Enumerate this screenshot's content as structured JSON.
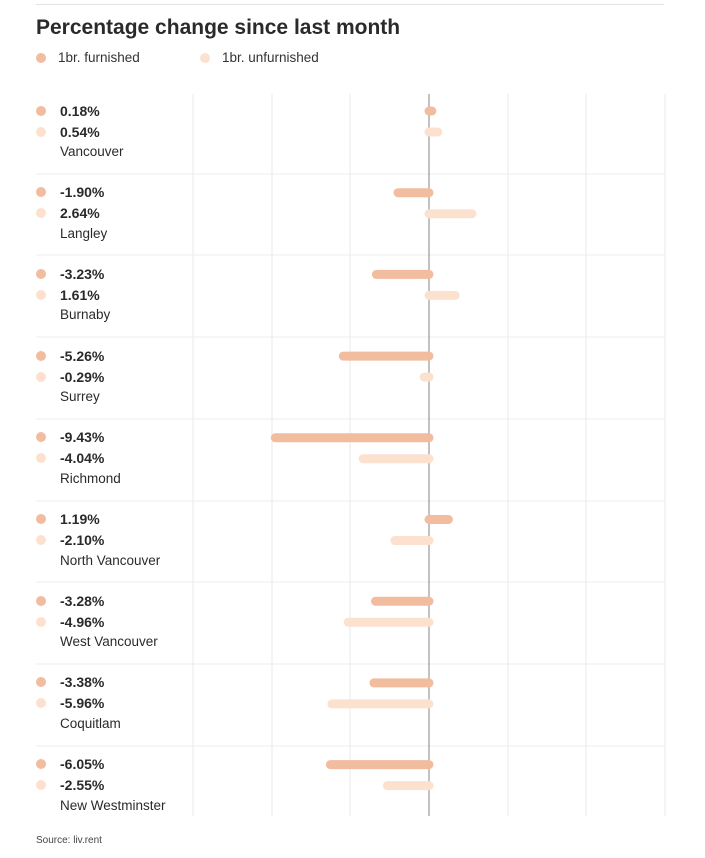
{
  "colors": {
    "furnished": "#f2bc9e",
    "unfurnished": "#fde1cf",
    "gridline": "#e8e8e8",
    "zero_line": "#999999"
  },
  "chart_data": {
    "type": "bar",
    "orientation": "horizontal",
    "title": "Percentage change since last month",
    "categories": [
      "Vancouver",
      "Langley",
      "Burnaby",
      "Surrey",
      "Richmond",
      "North Vancouver",
      "West Vancouver",
      "Coquitlam",
      "New Westminster"
    ],
    "series": [
      {
        "name": "1br. furnished",
        "values": [
          0.18,
          -1.9,
          -3.23,
          -5.26,
          -9.43,
          1.19,
          -3.28,
          -3.38,
          -6.05
        ],
        "labels": [
          "0.18%",
          "-1.90%",
          "-3.23%",
          "-5.26%",
          "-9.43%",
          "1.19%",
          "-3.28%",
          "-3.38%",
          "-6.05%"
        ]
      },
      {
        "name": "1br. unfurnished",
        "values": [
          0.54,
          2.64,
          1.61,
          -0.29,
          -4.04,
          -2.1,
          -4.96,
          -5.96,
          -2.55
        ],
        "labels": [
          "0.54%",
          "2.64%",
          "1.61%",
          "-0.29%",
          "-4.04%",
          "-2.10%",
          "-4.96%",
          "-5.96%",
          "-2.55%"
        ]
      }
    ],
    "xlim": [
      -15,
      15
    ],
    "grid": true,
    "legend_position": "top-left"
  },
  "source": "Source: liv.rent"
}
